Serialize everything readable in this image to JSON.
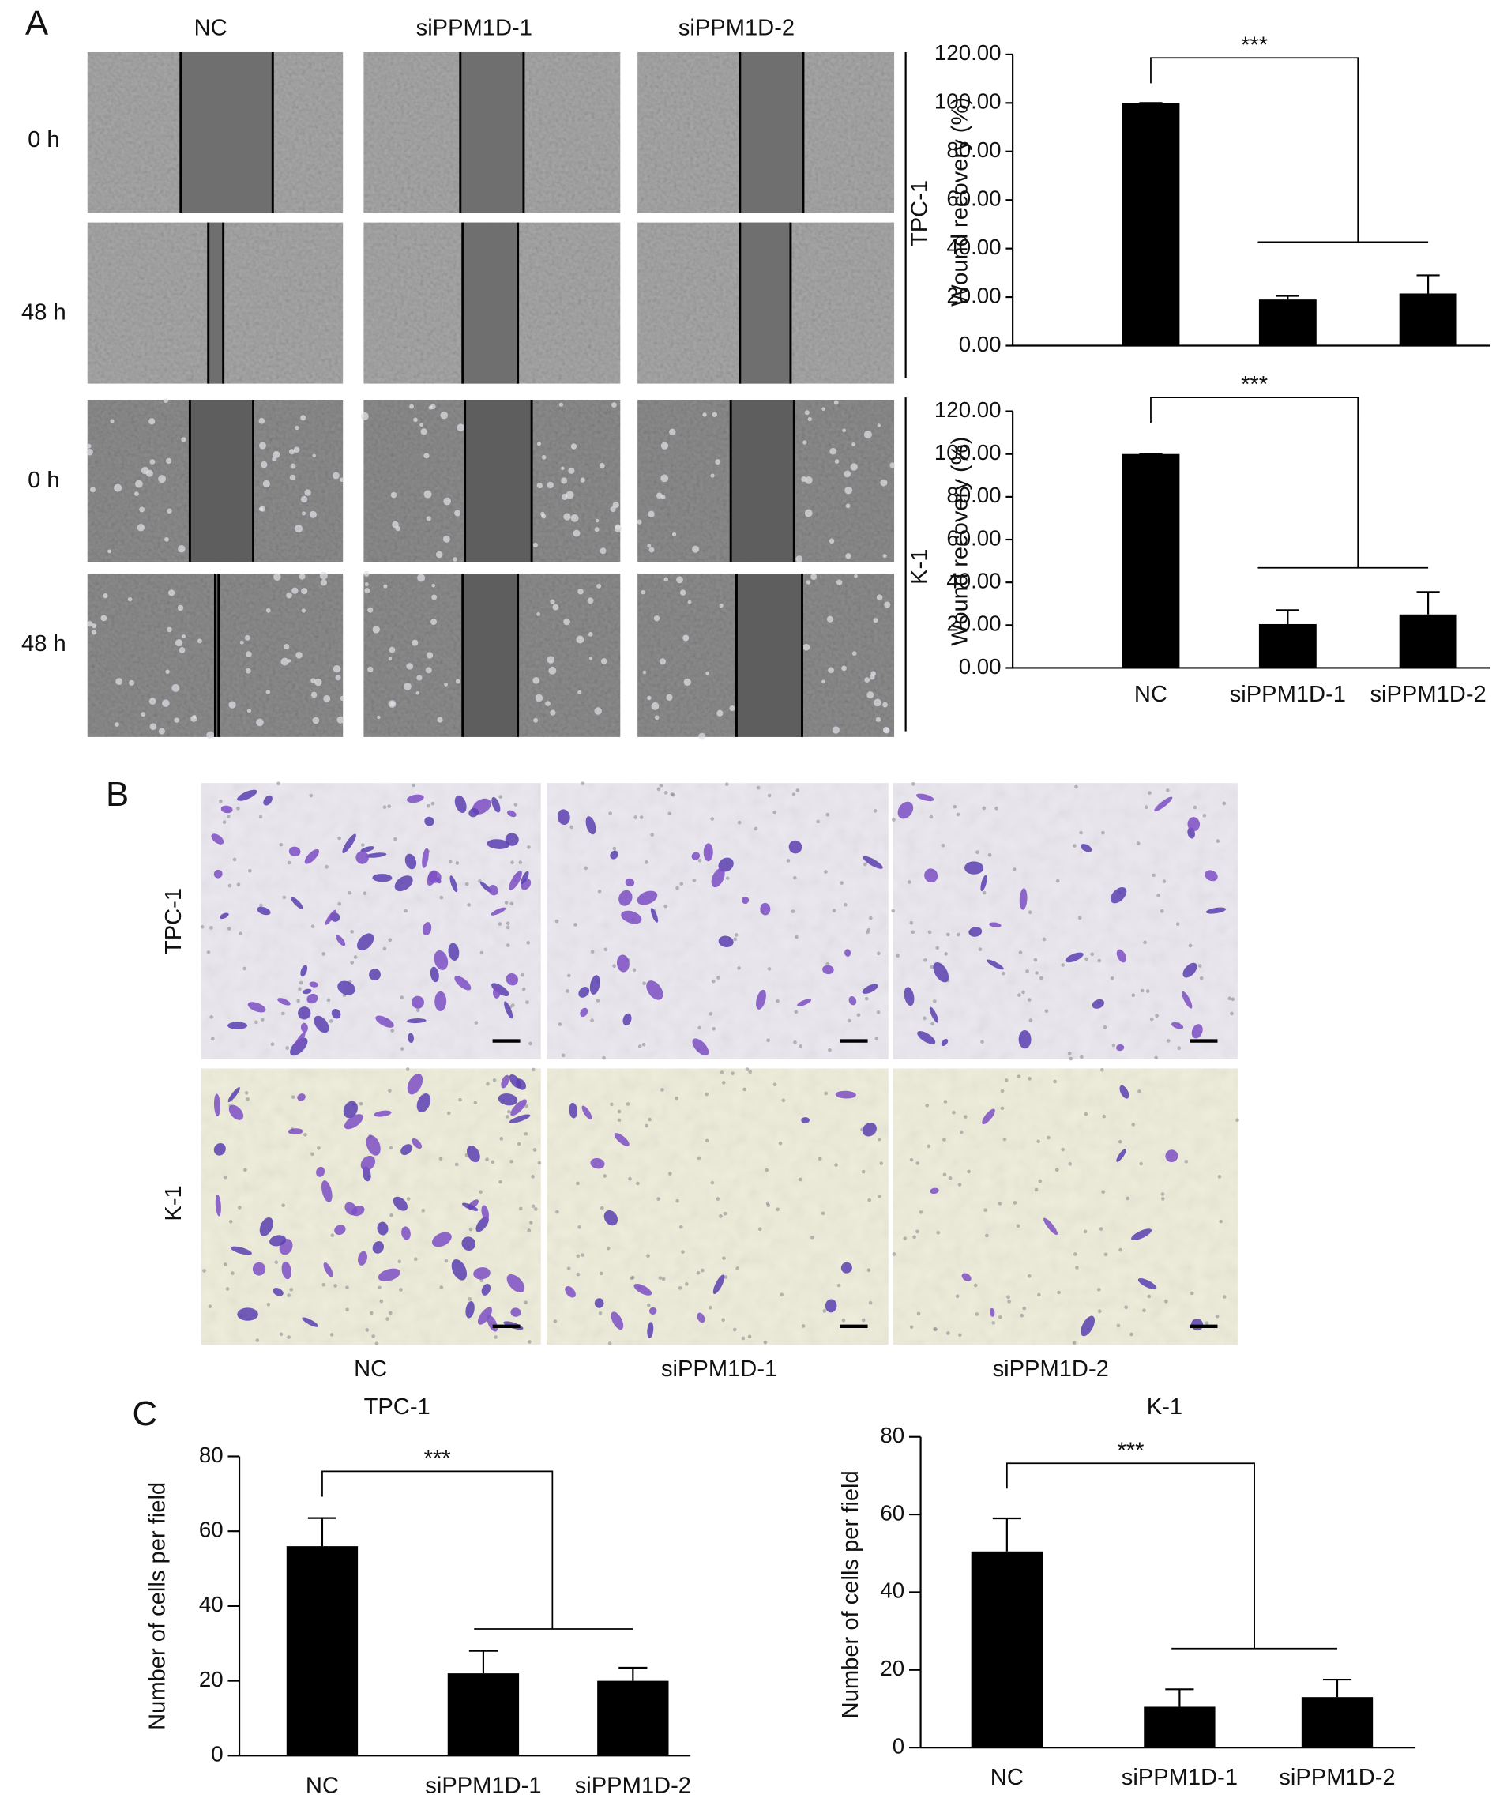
{
  "figure": {
    "panel_labels": [
      "A",
      "B",
      "C"
    ],
    "A": {
      "columns": [
        "NC",
        "siPPM1D-1",
        "siPPM1D-2"
      ],
      "rows": [
        "0 h",
        "48 h",
        "0 h",
        "48 h"
      ],
      "groups": [
        "TPC-1",
        "K-1"
      ]
    },
    "B": {
      "columns": [
        "NC",
        "siPPM1D-1",
        "siPPM1D-2"
      ],
      "rows": [
        "TPC-1",
        "K-1"
      ]
    }
  },
  "chart_data": [
    {
      "type": "bar",
      "y_label": "Wound recovery (%)",
      "annotation": "***",
      "color": "#000000",
      "categories": [
        null,
        null,
        null
      ],
      "values": [
        100,
        19,
        21.5
      ],
      "errors": [
        0,
        1.5,
        7.5
      ],
      "ylim": [
        0,
        120
      ],
      "yticks": [
        {
          "value": 0,
          "label": "0.00"
        },
        {
          "value": 20,
          "label": "20.00"
        },
        {
          "value": 40,
          "label": "40.00"
        },
        {
          "value": 60,
          "label": "60.00"
        },
        {
          "value": 80,
          "label": "80.00"
        },
        {
          "value": 100,
          "label": "100.00"
        },
        {
          "value": 120,
          "label": "120.00"
        }
      ],
      "grid": false
    },
    {
      "type": "bar",
      "y_label": "Wound recovery (%)",
      "annotation": "***",
      "color": "#000000",
      "categories": [
        "NC",
        "siPPM1D-1",
        "siPPM1D-2"
      ],
      "values": [
        100,
        20.5,
        25
      ],
      "errors": [
        0,
        6.5,
        10.5
      ],
      "ylim": [
        0,
        120
      ],
      "yticks": [
        {
          "value": 0,
          "label": "0.00"
        },
        {
          "value": 20,
          "label": "20.00"
        },
        {
          "value": 40,
          "label": "40.00"
        },
        {
          "value": 60,
          "label": "60.00"
        },
        {
          "value": 80,
          "label": "80.00"
        },
        {
          "value": 100,
          "label": "100.00"
        },
        {
          "value": 120,
          "label": "120.00"
        }
      ],
      "grid": false
    },
    {
      "type": "bar",
      "title": "TPC-1",
      "y_label": "Number of cells per field",
      "annotation": "***",
      "color": "#000000",
      "categories": [
        "NC",
        "siPPM1D-1",
        "siPPM1D-2"
      ],
      "values": [
        56,
        22,
        20
      ],
      "errors": [
        7.5,
        6,
        3.5
      ],
      "ylim": [
        0,
        80
      ],
      "yticks": [
        0,
        20,
        40,
        60,
        80
      ],
      "grid": false
    },
    {
      "type": "bar",
      "title": "K-1",
      "y_label": "Number of cells per field",
      "annotation": "***",
      "color": "#000000",
      "categories": [
        "NC",
        "siPPM1D-1",
        "siPPM1D-2"
      ],
      "values": [
        50.5,
        10.5,
        13
      ],
      "errors": [
        8.5,
        4.5,
        4.5
      ],
      "ylim": [
        0,
        80
      ],
      "yticks": [
        0,
        20,
        40,
        60,
        80
      ],
      "grid": false
    }
  ]
}
